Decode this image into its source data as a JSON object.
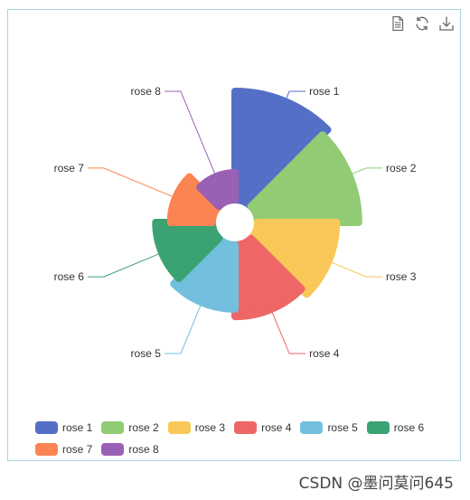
{
  "toolbox": {
    "data_view_icon": "data-view-icon",
    "restore_icon": "restore-icon",
    "save_image_icon": "save-as-image-icon"
  },
  "colors": {
    "rose 1": "#5470c6",
    "rose 2": "#91cc75",
    "rose 3": "#fac858",
    "rose 4": "#ee6666",
    "rose 5": "#73c0de",
    "rose 6": "#3ba272",
    "rose 7": "#fc8452",
    "rose 8": "#9a60b4"
  },
  "chart_data": {
    "type": "pie",
    "rose_type": "area",
    "legend_position": "bottom",
    "slices": [
      {
        "name": "rose 1",
        "value": 40
      },
      {
        "name": "rose 2",
        "value": 38
      },
      {
        "name": "rose 3",
        "value": 32
      },
      {
        "name": "rose 4",
        "value": 30
      },
      {
        "name": "rose 5",
        "value": 28
      },
      {
        "name": "rose 6",
        "value": 26
      },
      {
        "name": "rose 7",
        "value": 22
      },
      {
        "name": "rose 8",
        "value": 18
      }
    ]
  },
  "watermark": "CSDN @墨问莫问645"
}
